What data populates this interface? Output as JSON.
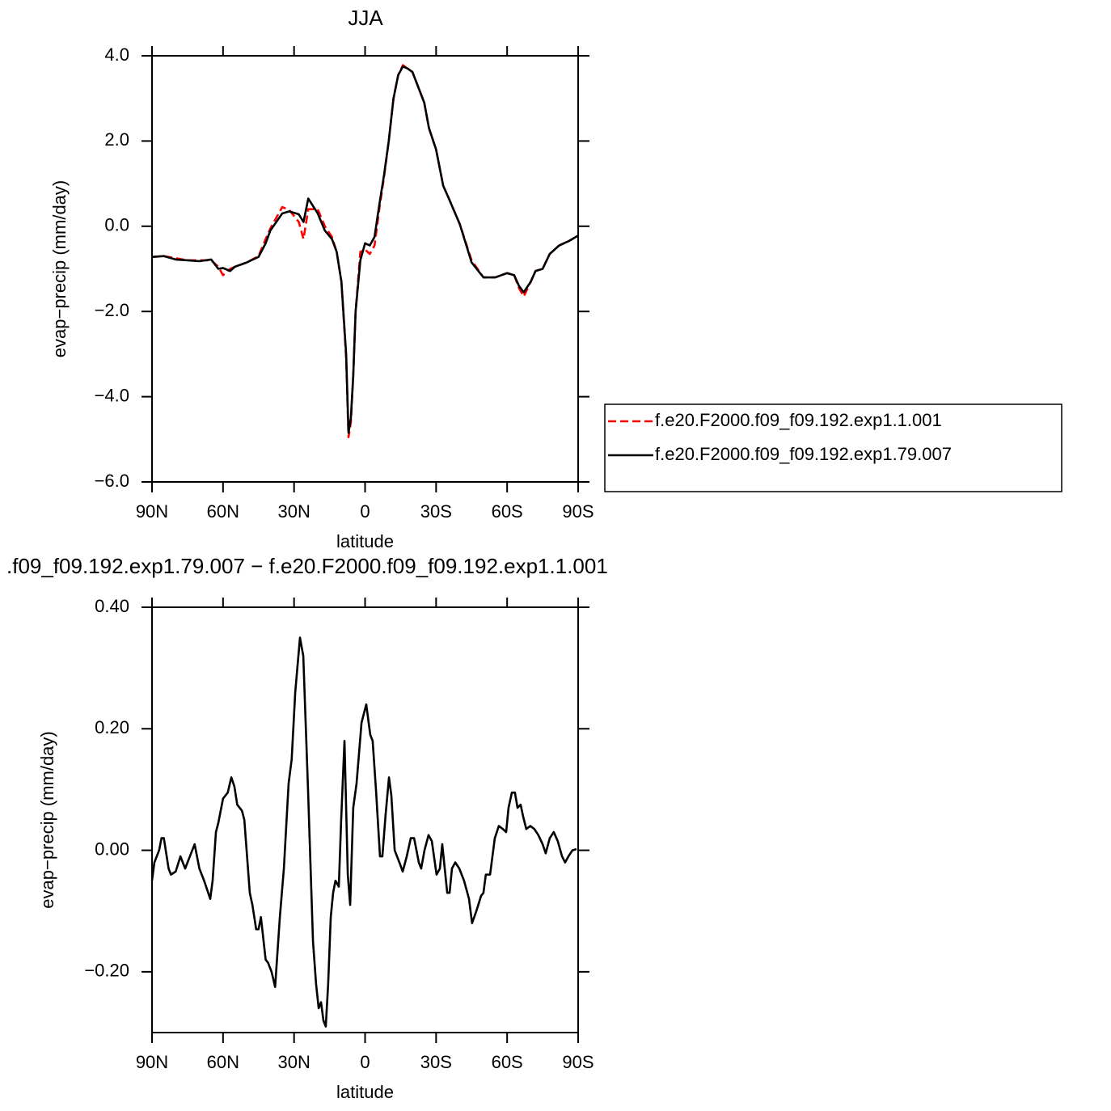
{
  "chart_data": [
    {
      "type": "line",
      "title": "JJA",
      "x_label": "latitude",
      "y_label": "evap−precip (mm/day)",
      "xlim": [
        90,
        -90
      ],
      "xticks": [
        {
          "value": 90,
          "label": "90N"
        },
        {
          "value": 60,
          "label": "60N"
        },
        {
          "value": 30,
          "label": "30N"
        },
        0,
        {
          "value": -30,
          "label": "30S"
        },
        {
          "value": -60,
          "label": "60S"
        },
        {
          "value": -90,
          "label": "90S"
        }
      ],
      "ylim": [
        -6,
        4
      ],
      "yticks": [
        {
          "value": 4,
          "label": "4.0"
        },
        {
          "value": 2,
          "label": "2.0"
        },
        {
          "value": 0,
          "label": "0.0"
        },
        {
          "value": -2,
          "label": "−2.0"
        },
        {
          "value": -4,
          "label": "−4.0"
        },
        {
          "value": -6,
          "label": "−6.0"
        }
      ],
      "legend": "right",
      "x": [
        90,
        85,
        80,
        75,
        70,
        65,
        62,
        60,
        57,
        55,
        50,
        45,
        42,
        40,
        35,
        32,
        28,
        26,
        24,
        20,
        17,
        14,
        12,
        10,
        8,
        7,
        6,
        5,
        4,
        2,
        0,
        -2,
        -4,
        -6,
        -8,
        -10,
        -12,
        -14,
        -16,
        -18,
        -20,
        -25,
        -27,
        -30,
        -33,
        -35,
        -40,
        -45,
        -50,
        -55,
        -60,
        -63,
        -65,
        -67,
        -70,
        -72,
        -75,
        -78,
        -82,
        -86,
        -90
      ],
      "series": [
        {
          "name": "f.e20.F2000.f09_f09.192.exp1.1.001",
          "color": "#ff0000",
          "dashed": true,
          "values": [
            -0.72,
            -0.7,
            -0.75,
            -0.8,
            -0.8,
            -0.8,
            -0.95,
            -1.15,
            -1.0,
            -0.95,
            -0.85,
            -0.7,
            -0.3,
            -0.05,
            0.45,
            0.38,
            0.1,
            -0.3,
            0.4,
            0.4,
            0.0,
            -0.25,
            -0.6,
            -1.3,
            -3.1,
            -4.95,
            -4.6,
            -3.5,
            -2.0,
            -0.6,
            -0.55,
            -0.65,
            -0.45,
            0.4,
            1.15,
            2.0,
            3.0,
            3.55,
            3.78,
            3.7,
            3.62,
            2.9,
            2.3,
            1.8,
            0.95,
            0.7,
            0.05,
            -0.8,
            -1.2,
            -1.2,
            -1.1,
            -1.15,
            -1.45,
            -1.65,
            -1.3,
            -1.05,
            -1.0,
            -0.65,
            -0.45,
            -0.35,
            -0.22
          ]
        },
        {
          "name": "f.e20.F2000.f09_f09.192.exp1.79.007",
          "color": "#000000",
          "dashed": false,
          "values": [
            -0.72,
            -0.7,
            -0.78,
            -0.8,
            -0.82,
            -0.78,
            -1.0,
            -0.98,
            -1.05,
            -0.95,
            -0.85,
            -0.72,
            -0.4,
            -0.1,
            0.3,
            0.35,
            0.28,
            0.1,
            0.65,
            0.3,
            -0.1,
            -0.3,
            -0.6,
            -1.3,
            -3.0,
            -4.85,
            -4.5,
            -3.5,
            -2.0,
            -0.8,
            -0.4,
            -0.45,
            -0.25,
            0.5,
            1.2,
            2.0,
            3.0,
            3.55,
            3.75,
            3.7,
            3.62,
            2.9,
            2.3,
            1.8,
            0.95,
            0.7,
            0.05,
            -0.85,
            -1.2,
            -1.2,
            -1.1,
            -1.15,
            -1.4,
            -1.55,
            -1.3,
            -1.05,
            -1.0,
            -0.65,
            -0.45,
            -0.35,
            -0.22
          ]
        }
      ]
    },
    {
      "type": "line",
      "title": ".f09_f09.192.exp1.79.007 − f.e20.F2000.f09_f09.192.exp1.1.001",
      "x_label": "latitude",
      "y_label": "evap−precip (mm/day)",
      "xlim": [
        90,
        -90
      ],
      "xticks": [
        {
          "value": 90,
          "label": "90N"
        },
        {
          "value": 60,
          "label": "60N"
        },
        {
          "value": 30,
          "label": "30N"
        },
        0,
        {
          "value": -30,
          "label": "30S"
        },
        {
          "value": -60,
          "label": "60S"
        },
        {
          "value": -90,
          "label": "90S"
        }
      ],
      "ylim": [
        -0.3,
        0.4
      ],
      "yticks": [
        {
          "value": 0.4,
          "label": "0.40"
        },
        {
          "value": 0.2,
          "label": "0.20"
        },
        {
          "value": 0,
          "label": "0.00"
        },
        {
          "value": -0.2,
          "label": "−0.20"
        }
      ],
      "x": [
        90,
        89,
        87,
        86,
        85,
        83,
        82,
        80,
        78,
        76,
        74,
        72,
        70,
        68,
        65.4,
        64.4,
        63,
        62,
        60,
        58,
        56.5,
        55.2,
        54,
        52,
        51,
        48.7,
        47.6,
        46,
        45,
        44,
        42,
        41,
        39.5,
        38,
        36,
        34.3,
        32.3,
        31,
        29.5,
        27.5,
        26.1,
        24.1,
        22,
        20.7,
        19.6,
        18.6,
        17.6,
        16.6,
        15.6,
        14.5,
        13.5,
        12.5,
        11.1,
        10.1,
        8.7,
        7.3,
        6.3,
        5,
        3.6,
        1.5,
        -0.5,
        -2.2,
        -3.2,
        -4.6,
        -6.3,
        -7.3,
        -8.7,
        -10.1,
        -11.1,
        -12.5,
        -14.5,
        -15.9,
        -17.6,
        -19.3,
        -20.7,
        -22.7,
        -23.7,
        -25.1,
        -26.8,
        -28.2,
        -30.2,
        -31.6,
        -32.6,
        -34.7,
        -35.7,
        -36.7,
        -38.1,
        -39.8,
        -41.8,
        -43.9,
        -45.2,
        -47,
        -49,
        -50,
        -51,
        -52.8,
        -54.8,
        -56.5,
        -58.2,
        -59.6,
        -60.6,
        -62,
        -63.3,
        -64.4,
        -65.7,
        -66.8,
        -68.1,
        -69.8,
        -71.5,
        -73.2,
        -75,
        -76.3,
        -78,
        -79.7,
        -81.4,
        -83.2,
        -84.5,
        -85.9,
        -87.6,
        -89.3
      ],
      "series": [
        {
          "color": "#000000",
          "dashed": false,
          "values": [
            -0.05,
            -0.02,
            0.0,
            0.02,
            0.02,
            -0.03,
            -0.04,
            -0.035,
            -0.01,
            -0.03,
            -0.01,
            0.01,
            -0.03,
            -0.05,
            -0.08,
            -0.05,
            0.03,
            0.045,
            0.085,
            0.095,
            0.12,
            0.105,
            0.075,
            0.065,
            0.05,
            -0.07,
            -0.09,
            -0.13,
            -0.13,
            -0.11,
            -0.18,
            -0.185,
            -0.2,
            -0.225,
            -0.11,
            -0.03,
            0.11,
            0.15,
            0.26,
            0.35,
            0.32,
            0.1,
            -0.15,
            -0.22,
            -0.26,
            -0.25,
            -0.28,
            -0.29,
            -0.22,
            -0.11,
            -0.07,
            -0.05,
            -0.06,
            0.05,
            0.18,
            -0.04,
            -0.09,
            0.07,
            0.11,
            0.21,
            0.24,
            0.19,
            0.18,
            0.1,
            -0.01,
            -0.01,
            0.06,
            0.12,
            0.09,
            0.0,
            -0.02,
            -0.035,
            -0.01,
            0.02,
            0.02,
            -0.02,
            -0.03,
            0.0,
            0.025,
            0.015,
            -0.04,
            -0.03,
            0.01,
            -0.07,
            -0.07,
            -0.03,
            -0.02,
            -0.03,
            -0.05,
            -0.08,
            -0.12,
            -0.1,
            -0.075,
            -0.07,
            -0.04,
            -0.04,
            0.02,
            0.04,
            0.035,
            0.03,
            0.07,
            0.095,
            0.095,
            0.07,
            0.075,
            0.055,
            0.035,
            0.04,
            0.035,
            0.025,
            0.01,
            -0.005,
            0.02,
            0.03,
            0.015,
            -0.01,
            -0.02,
            -0.01,
            0.0,
            0.002
          ]
        }
      ]
    }
  ]
}
